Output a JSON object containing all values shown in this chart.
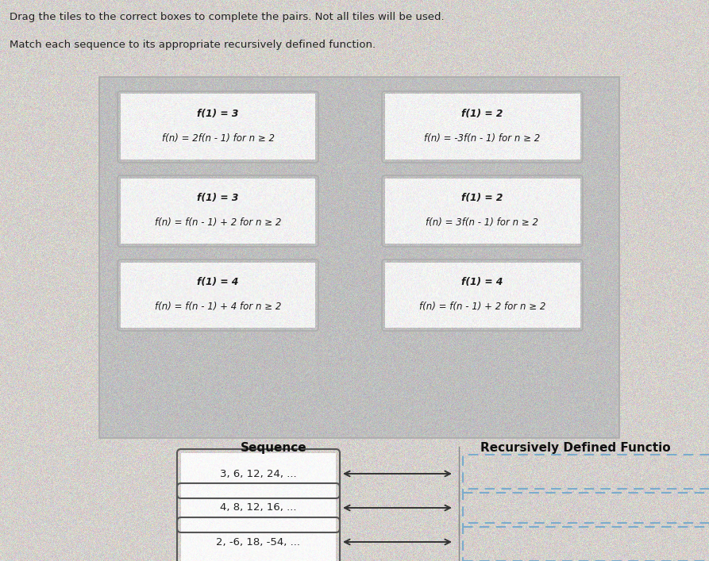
{
  "title1": "Drag the tiles to the correct boxes to complete the pairs. Not all tiles will be used.",
  "title2": "Match each sequence to its appropriate recursively defined function.",
  "bg_color": "#c8c8c8",
  "page_bg": "#d4d0cc",
  "tile_bg": "#f2f2f2",
  "tile_border": "#aaaaaa",
  "tiles_left": [
    [
      "f(1) = 3",
      "f(n) = 2f(n - 1) for n ≥ 2"
    ],
    [
      "f(1) = 3",
      "f(n) = f(n - 1) + 2 for n ≥ 2"
    ],
    [
      "f(1) = 4",
      "f(n) = f(n - 1) + 4 for n ≥ 2"
    ]
  ],
  "tiles_right": [
    [
      "f(1) = 2",
      "f(n) = -3f(n - 1) for n ≥ 2"
    ],
    [
      "f(1) = 2",
      "f(n) = 3f(n - 1) for n ≥ 2"
    ],
    [
      "f(1) = 4",
      "f(n) = f(n - 1) + 2 for n ≥ 2"
    ]
  ],
  "sequences": [
    "3, 6, 12, 24, ...",
    "4, 8, 12, 16, ...",
    "2, -6, 18, -54, ..."
  ],
  "seq_label": "Sequence",
  "func_label": "Recursively Defined Functio",
  "seq_box_color": "#ffffff",
  "seq_box_border": "#555555",
  "answer_box_border": "#7aabcc",
  "arrow_color": "#333333"
}
